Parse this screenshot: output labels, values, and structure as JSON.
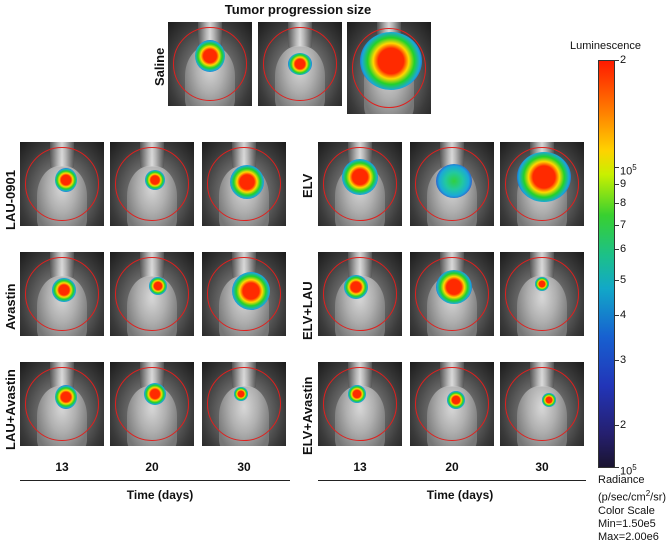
{
  "title": "Tumor progression size",
  "rows": {
    "saline": "Saline",
    "lau_0901": "LAU-0901",
    "avastin": "Avastin",
    "lau_avastin": "LAU+Avastin",
    "elv": "ELV",
    "elv_lau": "ELV+LAU",
    "elv_avastin": "ELV+Avastin"
  },
  "days": {
    "d13": "13",
    "d20": "20",
    "d30": "30"
  },
  "axis": {
    "time_left": "Time (days)",
    "time_right": "Time (days)"
  },
  "colorbar": {
    "title": "Luminescence",
    "top_label": "2",
    "label_10_5": "10",
    "label_10_5_sup": "5",
    "label_9": "9",
    "label_8": "8",
    "label_7": "7",
    "label_6": "6",
    "label_5": "5",
    "label_4": "4",
    "label_3": "3",
    "label_2": "2",
    "bottom_label": "10",
    "bottom_label_sup": "5"
  },
  "radiance": {
    "label": "Radiance",
    "units_a": "(p/sec/cm",
    "units_sup": "2",
    "units_b": "/sr)",
    "color_scale": "Color Scale",
    "min": "Min=1.50e5",
    "max": "Max=2.00e6"
  },
  "colors": {
    "ring": "#e0201e",
    "signal_core": "#ff2a00"
  }
}
